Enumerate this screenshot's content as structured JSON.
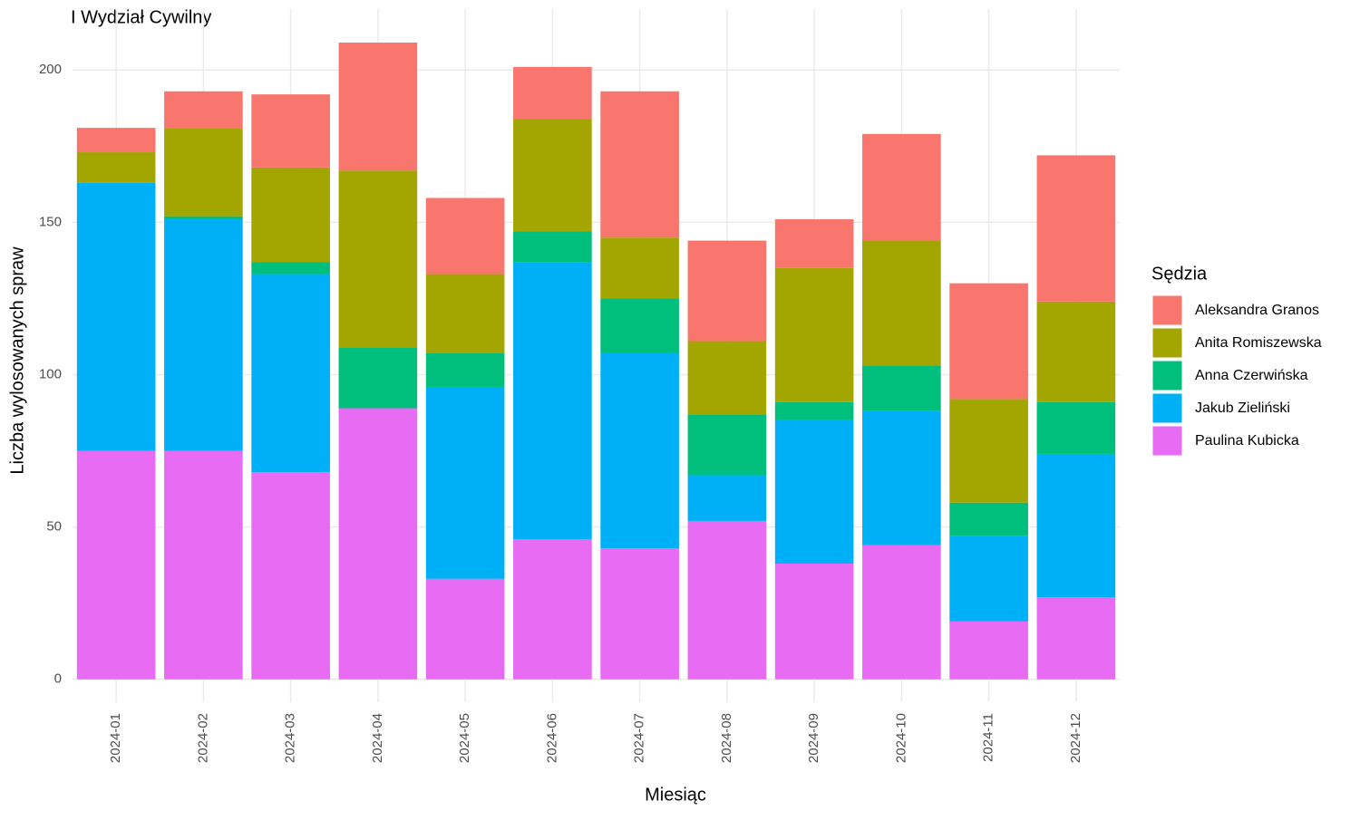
{
  "chart_data": {
    "type": "stacked_bar",
    "title": "I Wydział Cywilny",
    "x_label": "Miesiąc",
    "y_label": "Liczba wylosowanych spraw",
    "legend_title": "Sędzia",
    "legend_position": "right",
    "grid": true,
    "categories": [
      "2024-01",
      "2024-02",
      "2024-03",
      "2024-04",
      "2024-05",
      "2024-06",
      "2024-07",
      "2024-08",
      "2024-09",
      "2024-10",
      "2024-11",
      "2024-12"
    ],
    "ylim": [
      -7.5,
      220
    ],
    "yticks": [
      0,
      50,
      100,
      150,
      200
    ],
    "series": [
      {
        "name": "Paulina Kubicka",
        "color": "#e76bf3",
        "values": [
          75,
          75,
          68,
          89,
          33,
          46,
          43,
          52,
          38,
          44,
          19,
          27
        ]
      },
      {
        "name": "Jakub Zieliński",
        "color": "#00b0f6",
        "values": [
          88,
          76,
          65,
          0,
          63,
          91,
          64,
          15,
          47,
          44,
          28,
          47
        ]
      },
      {
        "name": "Anna Czerwińska",
        "color": "#00bf7d",
        "values": [
          0,
          1,
          4,
          20,
          11,
          10,
          18,
          20,
          6,
          15,
          11,
          17
        ]
      },
      {
        "name": "Anita Romiszewska",
        "color": "#a3a500",
        "values": [
          10,
          29,
          31,
          58,
          26,
          37,
          20,
          24,
          44,
          41,
          34,
          33
        ]
      },
      {
        "name": "Aleksandra Granos",
        "color": "#f8766d",
        "values": [
          8,
          12,
          24,
          42,
          25,
          17,
          48,
          33,
          16,
          35,
          38,
          48
        ]
      }
    ]
  }
}
